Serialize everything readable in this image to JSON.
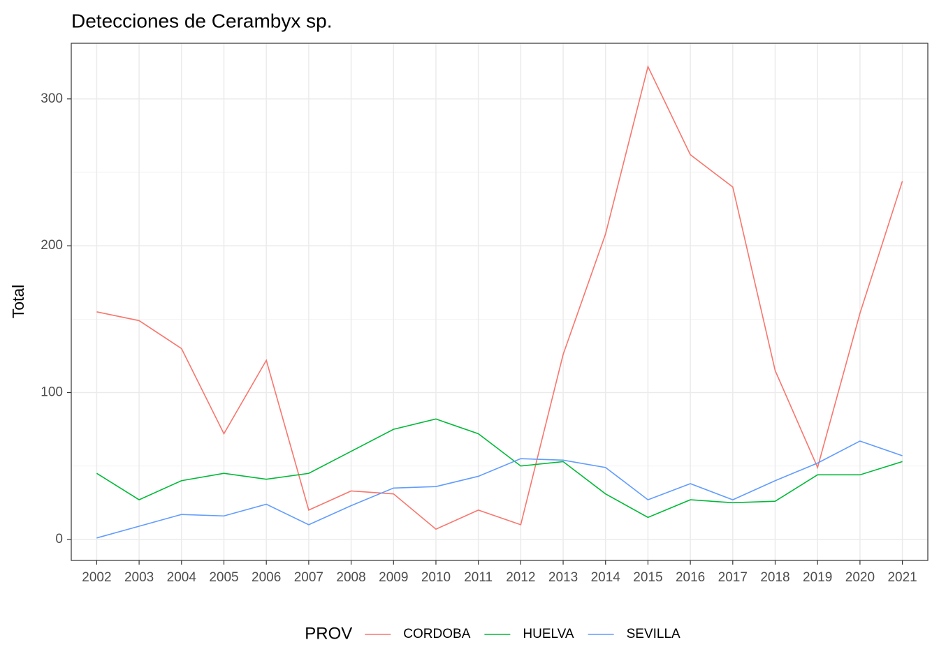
{
  "chart_data": {
    "type": "line",
    "title": "Detecciones de Cerambyx sp.",
    "y_label": "Total",
    "legend_title": "PROV",
    "legend_position": "bottom",
    "grid": true,
    "x": [
      2002,
      2003,
      2004,
      2005,
      2006,
      2007,
      2008,
      2009,
      2010,
      2011,
      2012,
      2013,
      2014,
      2015,
      2016,
      2017,
      2018,
      2019,
      2020,
      2021
    ],
    "xlim": [
      2001.4,
      2021.6
    ],
    "xticks": [
      2002,
      2003,
      2004,
      2005,
      2006,
      2007,
      2008,
      2009,
      2010,
      2011,
      2012,
      2013,
      2014,
      2015,
      2016,
      2017,
      2018,
      2019,
      2020,
      2021
    ],
    "ylim": [
      -14.3,
      337.9
    ],
    "yticks": [
      0,
      100,
      200,
      300
    ],
    "series": [
      {
        "name": "CORDOBA",
        "color": "#F8766D",
        "values": [
          155,
          149,
          130,
          72,
          122,
          20,
          33,
          31,
          7,
          20,
          10,
          126,
          208,
          322,
          262,
          240,
          115,
          49,
          154,
          244
        ]
      },
      {
        "name": "HUELVA",
        "color": "#00BA38",
        "values": [
          45,
          27,
          40,
          45,
          41,
          45,
          60,
          75,
          82,
          72,
          50,
          53,
          31,
          15,
          27,
          25,
          26,
          44,
          44,
          53
        ]
      },
      {
        "name": "SEVILLA",
        "color": "#619CFF",
        "values": [
          1,
          9,
          17,
          16,
          24,
          10,
          23,
          35,
          36,
          43,
          55,
          54,
          49,
          27,
          38,
          27,
          40,
          52,
          67,
          57
        ]
      }
    ]
  }
}
